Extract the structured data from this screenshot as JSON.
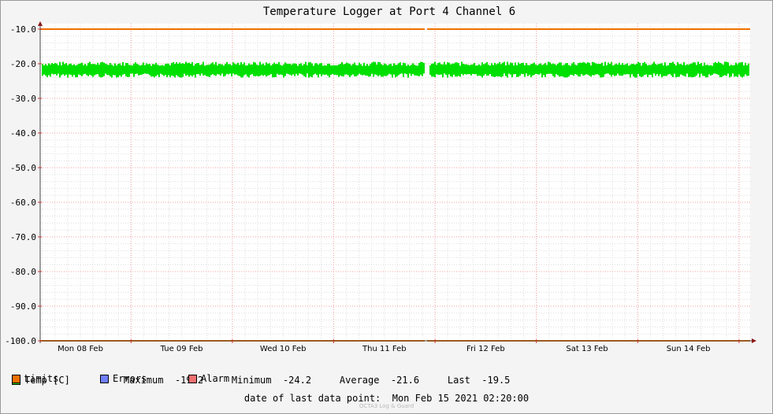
{
  "chart_data": {
    "type": "line",
    "title": "Temperature Logger at Port 4 Channel 6",
    "ylabel": "",
    "xlabel": "",
    "ylim": [
      -100,
      -10
    ],
    "y_ticks": [
      "-10.0",
      "-20.0",
      "-30.0",
      "-40.0",
      "-50.0",
      "-60.0",
      "-70.0",
      "-80.0",
      "-90.0",
      "-100.0"
    ],
    "x_ticks": [
      "Mon 08 Feb",
      "Tue 09 Feb",
      "Wed 10 Feb",
      "Thu 11 Feb",
      "Fri 12 Feb",
      "Sat 13 Feb",
      "Sun 14 Feb"
    ],
    "x_range": [
      "2021-02-07 12:00",
      "2021-02-15 02:20"
    ],
    "grid": true,
    "series": [
      {
        "name": "Temp [C]",
        "style": "band",
        "color": "#00e000",
        "mean": -21.6,
        "max": -19.2,
        "min": -24.2,
        "last": -19.5,
        "typical_range": [
          -23.0,
          -20.2
        ]
      },
      {
        "name": "Limits",
        "style": "line",
        "color": "#f07000",
        "values": [
          -10.0,
          -100.0
        ]
      }
    ],
    "legend": [
      {
        "label": "Temp [C]",
        "color": "#00e000"
      },
      {
        "label": "Limits",
        "color": "#f07000"
      },
      {
        "label": "Errors",
        "color": "#6f7fff"
      },
      {
        "label": "Alarm",
        "color": "#f07070"
      }
    ],
    "stats": [
      {
        "label": "Maximum",
        "value": "-19.2"
      },
      {
        "label": "Minimum",
        "value": "-24.2"
      },
      {
        "label": "Average",
        "value": "-21.6"
      },
      {
        "label": "Last",
        "value": "-19.5"
      }
    ]
  },
  "footer": {
    "last_point": "date of last data point:  Mon Feb 15 2021 02:20:00",
    "watermark": "OCTA3 Log & Guard"
  }
}
